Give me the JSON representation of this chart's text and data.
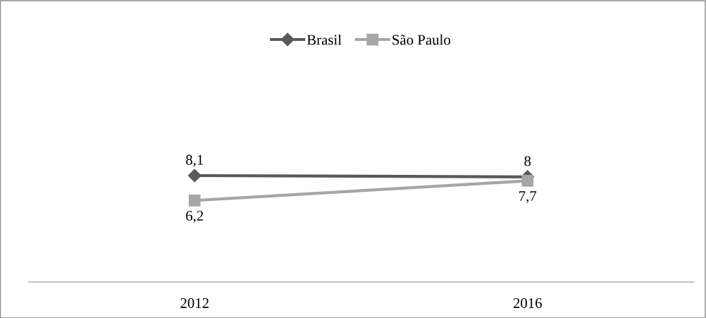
{
  "chart_data": {
    "type": "line",
    "categories": [
      "2012",
      "2016"
    ],
    "series": [
      {
        "name": "Brasil",
        "color": "#595959",
        "marker": "diamond",
        "values": [
          8.1,
          8
        ],
        "value_labels": [
          "8,1",
          "8"
        ]
      },
      {
        "name": "São Paulo",
        "color": "#a6a6a6",
        "marker": "square",
        "values": [
          6.2,
          7.7
        ],
        "value_labels": [
          "6,2",
          "7,7"
        ]
      }
    ],
    "legend": "top",
    "grid": false
  }
}
